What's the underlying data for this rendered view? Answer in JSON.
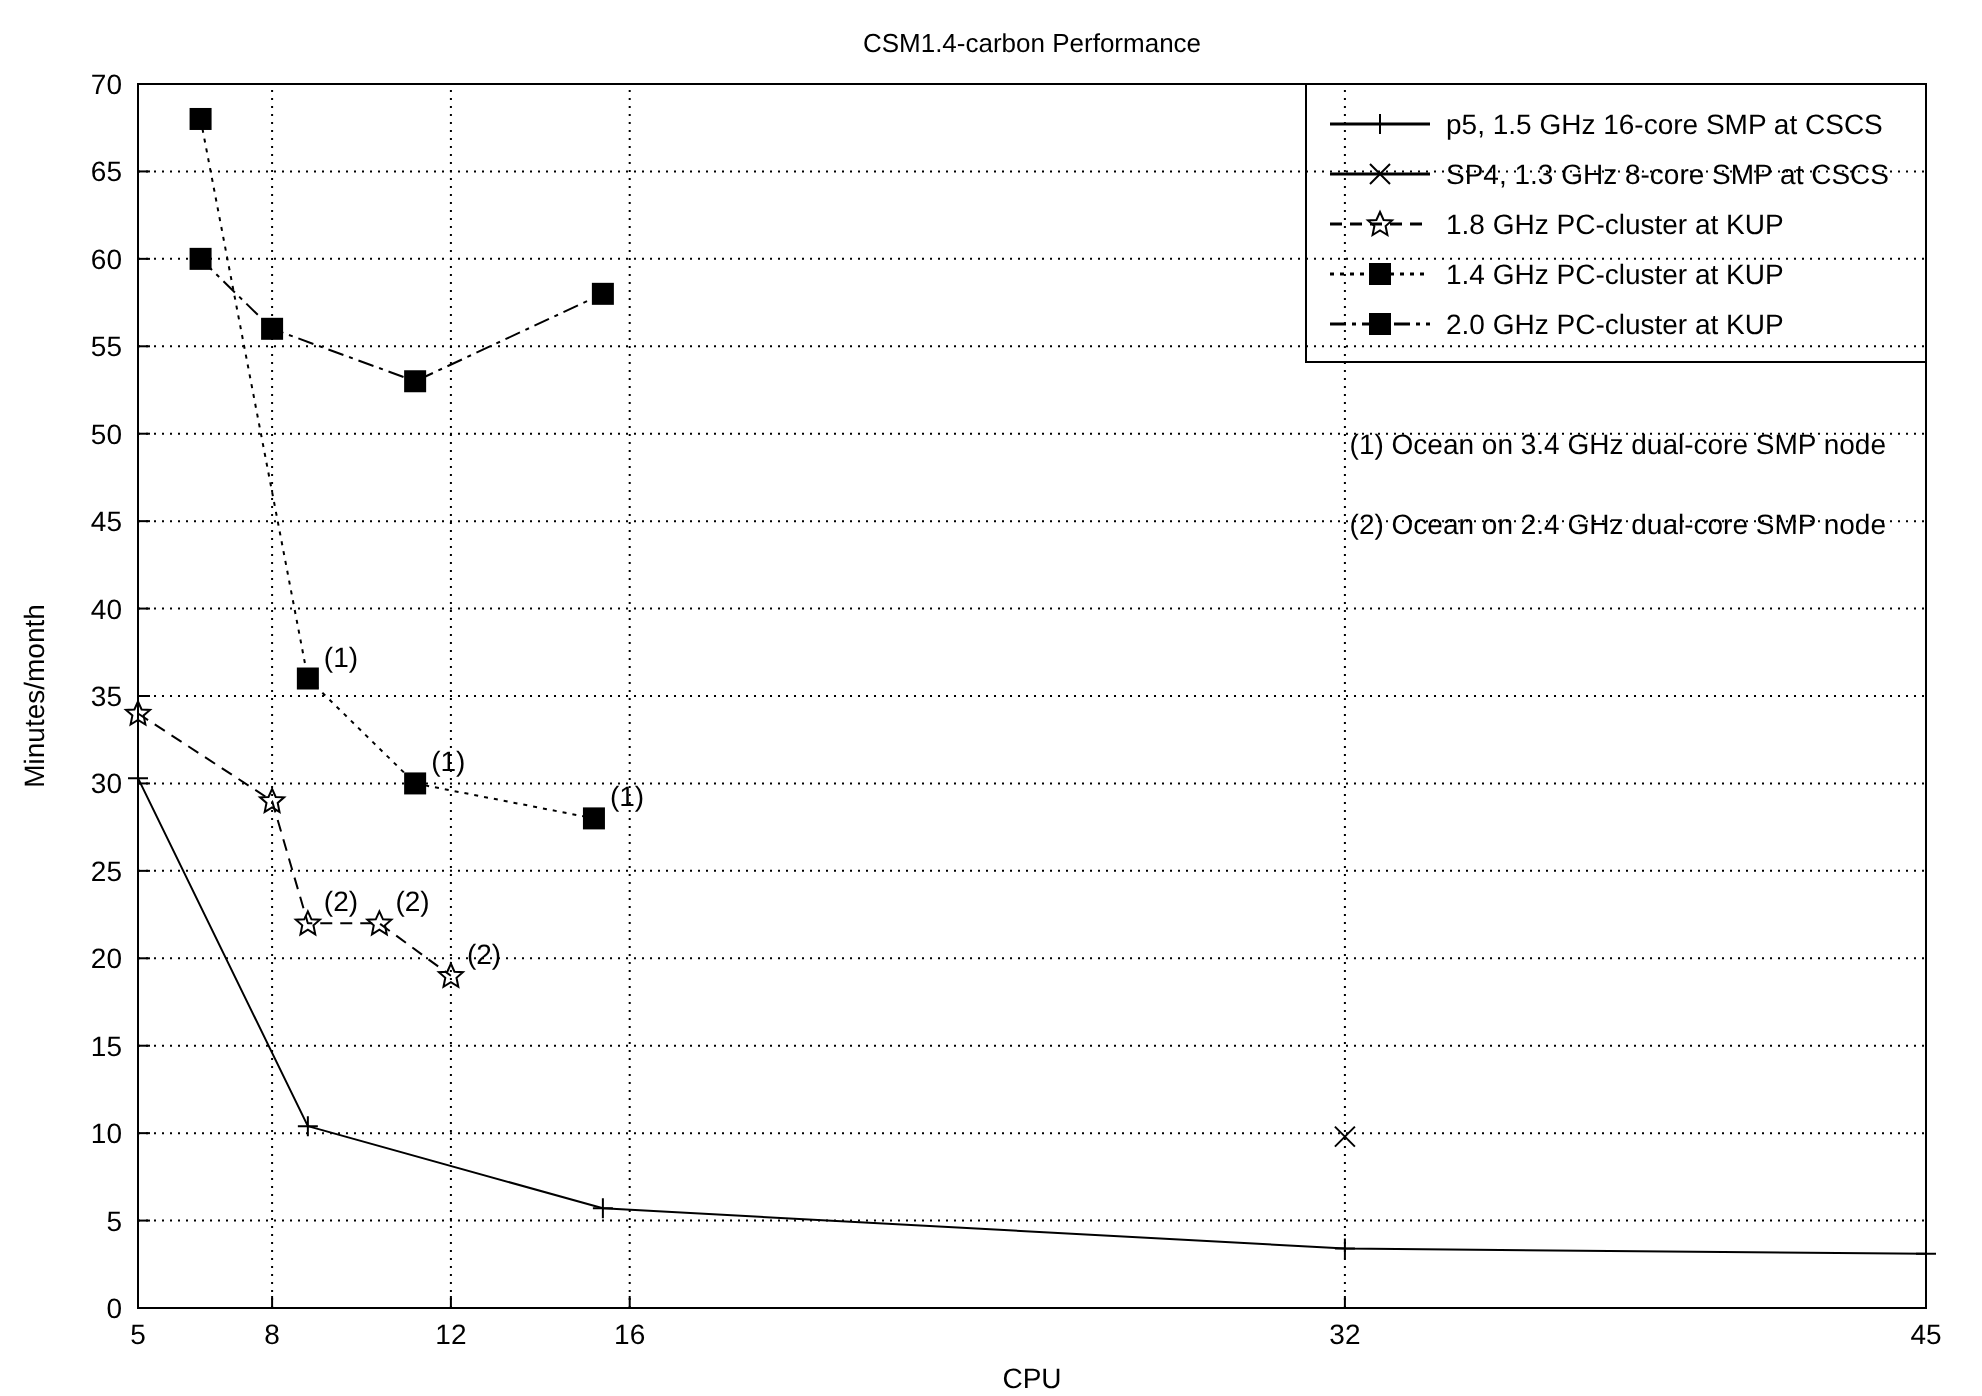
{
  "chart_data": {
    "type": "line",
    "title": "CSM1.4-carbon Performance",
    "xlabel": "CPU",
    "ylabel": "Minutes/month",
    "xlim": [
      5,
      45
    ],
    "xticks": [
      5,
      8,
      12,
      16,
      32,
      45
    ],
    "ylim": [
      0,
      70
    ],
    "yticks": [
      0,
      5,
      10,
      15,
      20,
      25,
      30,
      35,
      40,
      45,
      50,
      55,
      60,
      65,
      70
    ],
    "grid": true,
    "legend": "top right",
    "series": [
      {
        "name": "p5, 1.5 GHz 16-core SMP at CSCS",
        "color": "#000000",
        "marker": "cross",
        "line_style": "solid",
        "x": [
          5,
          8.8,
          15.4,
          32,
          45
        ],
        "values": [
          30.3,
          10.4,
          5.7,
          3.4,
          3.1
        ]
      },
      {
        "name": "SP4, 1.3 GHz 8-core SMP at CSCS",
        "color": "#000000",
        "marker": "x",
        "x": [
          32
        ],
        "values": [
          9.8
        ]
      },
      {
        "name": "1.8 GHz PC-cluster at KUP",
        "color": "#000000",
        "marker": "star",
        "line_style": "dashed",
        "x": [
          5,
          8,
          8.8,
          10.4,
          12
        ],
        "values": [
          34,
          29,
          22,
          22,
          19
        ]
      },
      {
        "name": "1.4 GHz PC-cluster at KUP",
        "color": "#000000",
        "marker": "square",
        "line_style": "dotted",
        "x": [
          6.4,
          8.8,
          11.2,
          15.2
        ],
        "values": [
          68,
          36,
          30,
          28
        ]
      },
      {
        "name": "2.0 GHz PC-cluster at KUP",
        "color": "#000000",
        "marker": "square",
        "line_style": "dashdot",
        "x": [
          6.4,
          8,
          11.2,
          15.4
        ],
        "values": [
          60,
          56,
          53,
          58
        ]
      }
    ],
    "annotations": [
      "(1) Ocean on 3.4 GHz dual-core SMP node",
      "(2) Ocean on 2.4 GHz dual-core SMP node",
      {
        "text": "(1)",
        "x": 8.8,
        "y": 36
      },
      {
        "text": "(1)",
        "x": 11.2,
        "y": 30
      },
      {
        "text": "(1)",
        "x": 15.2,
        "y": 28
      },
      {
        "text": "(2)",
        "x": 8.8,
        "y": 22
      },
      {
        "text": "(2)",
        "x": 10.4,
        "y": 22
      },
      {
        "text": "(2)",
        "x": 12,
        "y": 19
      }
    ]
  }
}
